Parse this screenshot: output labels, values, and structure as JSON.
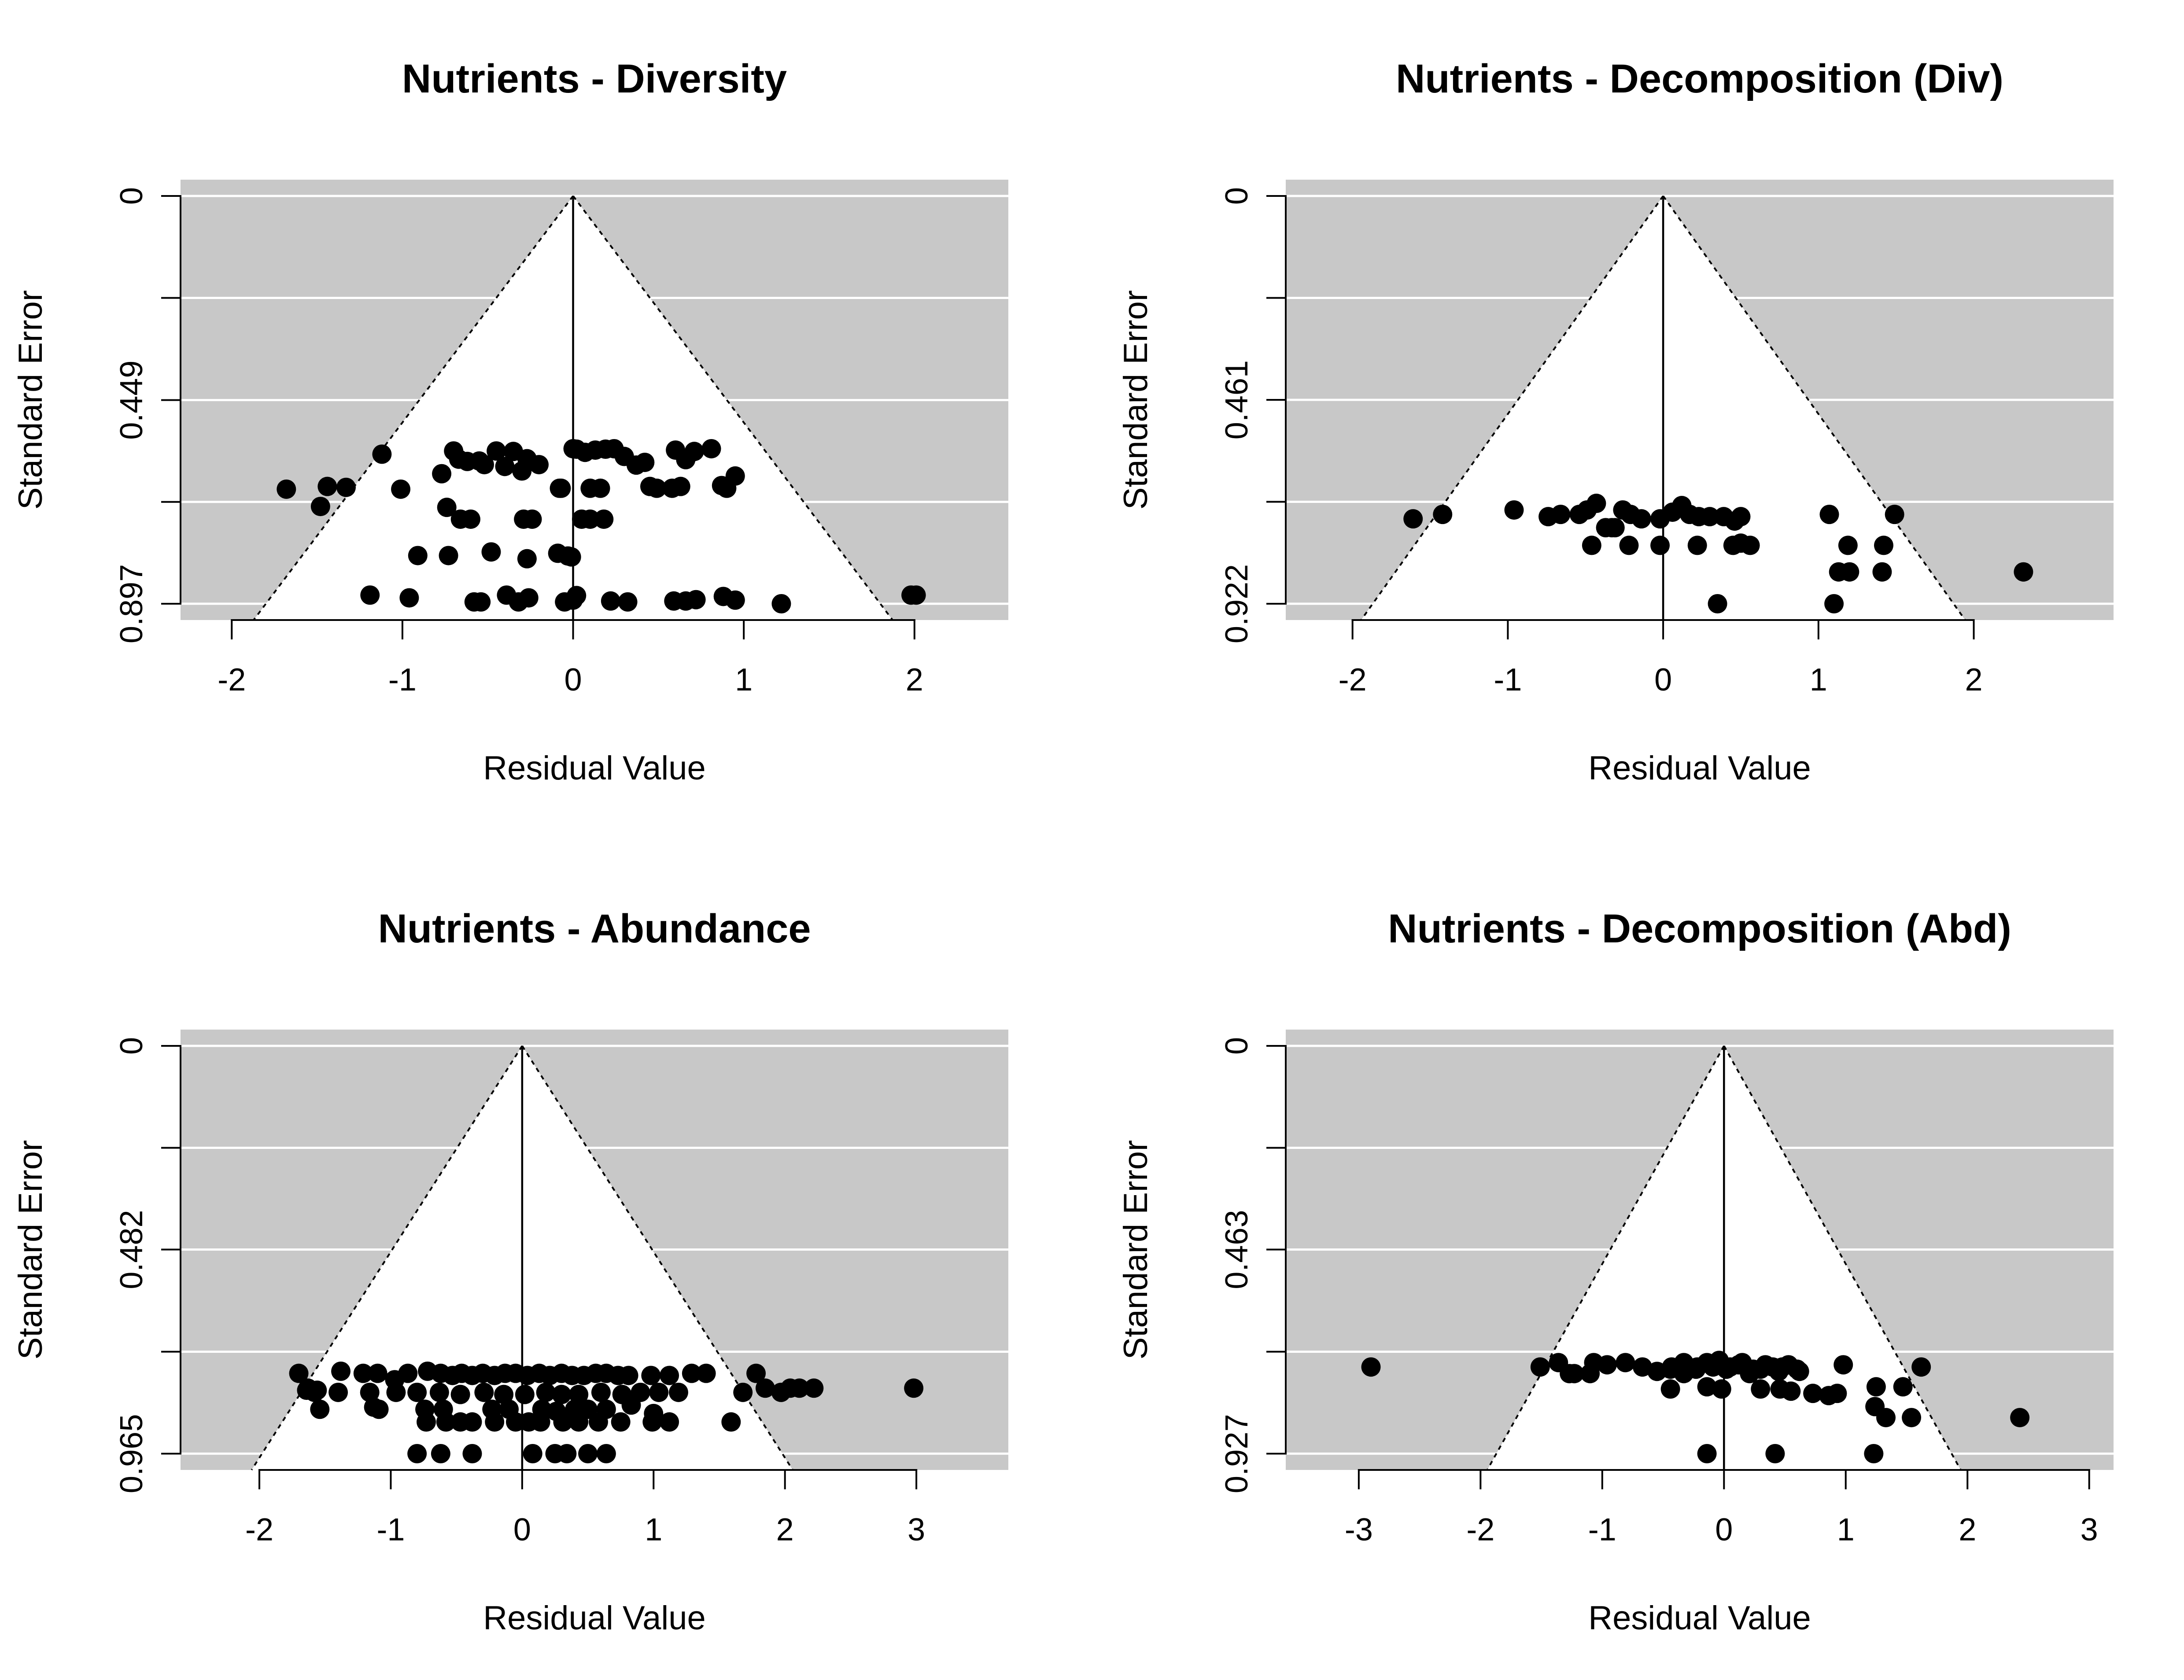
{
  "chart_data": [
    {
      "type": "scatter",
      "title": "Nutrients - Diversity",
      "xlabel": "Residual Value",
      "ylabel": "Standard Error",
      "xlim": [
        -2.3,
        2.55
      ],
      "ylim": [
        0,
        0.897
      ],
      "y_reversed": true,
      "x_ticks": [
        -2,
        -1,
        0,
        1,
        2
      ],
      "x_tick_labels": [
        "-2",
        "-1",
        "0",
        "1",
        "2"
      ],
      "y_gridlines": [
        0,
        0.2243,
        0.449,
        0.673,
        0.897
      ],
      "y_ticks": [
        0,
        0.2243,
        0.449,
        0.673,
        0.897
      ],
      "y_tick_labels": [
        "0",
        "",
        "0.449",
        "",
        "0.897"
      ],
      "funnel": {
        "center": 0,
        "max_se": 0.897,
        "bottom_half_width": 1.8
      },
      "background": "#c8c8c8",
      "x": [
        -1.68,
        -1.48,
        -1.44,
        -1.33,
        -1.12,
        -1.01,
        -0.77,
        -0.7,
        -0.67,
        -0.62,
        -0.55,
        -0.52,
        -0.45,
        -0.4,
        -0.35,
        -0.3,
        -0.27,
        -0.2,
        -0.08,
        0.0,
        0.02,
        0.07,
        0.13,
        0.19,
        0.24,
        0.3,
        0.37,
        0.42,
        0.49,
        0.6,
        0.66,
        0.71,
        0.81,
        0.87,
        0.95,
        -0.74,
        -0.66,
        -0.6,
        -0.29,
        -0.24,
        -0.07,
        0.05,
        0.1,
        0.18,
        0.45,
        0.58,
        0.63,
        0.9,
        0.1,
        0.16,
        -0.91,
        -0.73,
        -0.48,
        -0.27,
        -0.09,
        -0.03,
        -0.01,
        -1.19,
        -0.96,
        -0.58,
        -0.54,
        -0.39,
        -0.32,
        -0.26,
        -0.05,
        0.02,
        0.22,
        0.32,
        0.59,
        0.66,
        0.72,
        0.88,
        0.95,
        1.22,
        1.98,
        2.01,
        0.0
      ],
      "y": [
        0.645,
        0.683,
        0.639,
        0.641,
        0.568,
        0.645,
        0.611,
        0.561,
        0.579,
        0.584,
        0.583,
        0.591,
        0.561,
        0.595,
        0.562,
        0.605,
        0.578,
        0.591,
        0.643,
        0.556,
        0.557,
        0.564,
        0.559,
        0.557,
        0.556,
        0.573,
        0.592,
        0.586,
        0.643,
        0.559,
        0.58,
        0.562,
        0.556,
        0.637,
        0.616,
        0.685,
        0.711,
        0.711,
        0.711,
        0.711,
        0.643,
        0.711,
        0.711,
        0.711,
        0.639,
        0.643,
        0.639,
        0.643,
        0.643,
        0.643,
        0.791,
        0.791,
        0.783,
        0.798,
        0.786,
        0.792,
        0.794,
        0.878,
        0.884,
        0.893,
        0.893,
        0.878,
        0.893,
        0.884,
        0.893,
        0.879,
        0.891,
        0.893,
        0.891,
        0.891,
        0.888,
        0.881,
        0.889,
        0.897,
        0.878,
        0.878,
        0.889
      ]
    },
    {
      "type": "scatter",
      "title": "Nutrients - Decomposition (Div)",
      "xlabel": "Residual Value",
      "ylabel": "Standard Error",
      "xlim": [
        -2.43,
        2.9
      ],
      "ylim": [
        0,
        0.922
      ],
      "y_reversed": true,
      "x_ticks": [
        -2,
        -1,
        0,
        1,
        2
      ],
      "x_tick_labels": [
        "-2",
        "-1",
        "0",
        "1",
        "2"
      ],
      "y_gridlines": [
        0,
        0.2305,
        0.461,
        0.6915,
        0.922
      ],
      "y_ticks": [
        0,
        0.2305,
        0.461,
        0.6915,
        0.922
      ],
      "y_tick_labels": [
        "0",
        "",
        "0.461",
        "",
        "0.922"
      ],
      "funnel": {
        "center": 0,
        "max_se": 0.922,
        "bottom_half_width": 1.87
      },
      "background": "#c8c8c8",
      "x": [
        -1.61,
        -1.42,
        -0.96,
        -0.74,
        -0.66,
        -0.54,
        -0.49,
        -0.43,
        -0.37,
        -0.31,
        -0.26,
        -0.21,
        -0.14,
        -0.02,
        0.06,
        0.12,
        0.17,
        0.23,
        0.3,
        0.39,
        0.46,
        0.5,
        -0.46,
        -0.33,
        -0.22,
        -0.02,
        0.22,
        0.45,
        0.5,
        0.56,
        1.07,
        1.19,
        1.42,
        1.49,
        1.13,
        1.2,
        1.41,
        2.32,
        0.35,
        1.1
      ],
      "y": [
        0.73,
        0.72,
        0.71,
        0.725,
        0.72,
        0.72,
        0.71,
        0.695,
        0.75,
        0.75,
        0.71,
        0.72,
        0.73,
        0.73,
        0.715,
        0.7,
        0.72,
        0.725,
        0.725,
        0.725,
        0.735,
        0.725,
        0.79,
        0.75,
        0.79,
        0.79,
        0.79,
        0.79,
        0.785,
        0.79,
        0.72,
        0.79,
        0.79,
        0.72,
        0.85,
        0.85,
        0.85,
        0.85,
        0.922,
        0.922
      ]
    },
    {
      "type": "scatter",
      "title": "Nutrients - Abundance",
      "xlabel": "Residual Value",
      "ylabel": "Standard Error",
      "xlim": [
        -2.6,
        3.7
      ],
      "ylim": [
        0,
        0.965
      ],
      "y_reversed": true,
      "x_ticks": [
        -2,
        -1,
        0,
        1,
        2,
        3
      ],
      "x_tick_labels": [
        "-2",
        "-1",
        "0",
        "1",
        "2",
        "3"
      ],
      "y_gridlines": [
        0,
        0.2413,
        0.482,
        0.7238,
        0.965
      ],
      "y_ticks": [
        0,
        0.2413,
        0.482,
        0.7238,
        0.965
      ],
      "y_tick_labels": [
        "0",
        "",
        "0.482",
        "",
        "0.965"
      ],
      "funnel": {
        "center": 0,
        "max_se": 0.965,
        "bottom_half_width": 1.98
      },
      "background": "#c8c8c8",
      "x": [
        -1.7,
        -1.63,
        -1.56,
        -1.38,
        -1.21,
        -1.1,
        -0.97,
        -0.87,
        -0.72,
        -0.62,
        -0.53,
        -0.46,
        -0.38,
        -0.3,
        -0.21,
        -0.13,
        -0.05,
        0.04,
        0.13,
        0.21,
        0.3,
        0.38,
        0.47,
        0.56,
        0.64,
        0.73,
        0.81,
        0.98,
        1.12,
        1.29,
        1.4,
        1.78,
        1.85,
        2.04,
        2.11,
        2.22,
        2.98,
        -1.64,
        -1.58,
        -1.4,
        -1.16,
        -0.96,
        -0.8,
        -0.63,
        -0.47,
        -0.29,
        -0.14,
        0.02,
        0.18,
        0.3,
        0.43,
        0.6,
        0.76,
        0.9,
        1.04,
        1.19,
        1.68,
        1.97,
        -1.54,
        -1.13,
        -1.09,
        -0.74,
        -0.6,
        -0.23,
        -0.1,
        0.15,
        0.26,
        0.4,
        0.5,
        0.64,
        1.0,
        0.83,
        -0.73,
        -0.58,
        -0.47,
        -0.38,
        -0.21,
        -0.05,
        0.05,
        0.14,
        0.31,
        0.43,
        0.58,
        0.75,
        0.99,
        1.12,
        1.59,
        -0.8,
        -0.62,
        -0.38,
        0.08,
        0.25,
        0.34,
        0.5,
        0.64
      ],
      "y": [
        0.775,
        0.81,
        0.815,
        0.77,
        0.775,
        0.775,
        0.79,
        0.775,
        0.77,
        0.775,
        0.78,
        0.775,
        0.78,
        0.775,
        0.78,
        0.775,
        0.775,
        0.78,
        0.775,
        0.78,
        0.775,
        0.78,
        0.78,
        0.775,
        0.775,
        0.78,
        0.78,
        0.78,
        0.78,
        0.775,
        0.775,
        0.775,
        0.81,
        0.81,
        0.81,
        0.81,
        0.81,
        0.815,
        0.82,
        0.82,
        0.82,
        0.82,
        0.82,
        0.82,
        0.825,
        0.82,
        0.825,
        0.825,
        0.82,
        0.825,
        0.825,
        0.82,
        0.825,
        0.82,
        0.82,
        0.82,
        0.82,
        0.82,
        0.86,
        0.855,
        0.86,
        0.86,
        0.86,
        0.86,
        0.86,
        0.86,
        0.865,
        0.86,
        0.86,
        0.86,
        0.87,
        0.85,
        0.89,
        0.89,
        0.89,
        0.89,
        0.89,
        0.89,
        0.89,
        0.89,
        0.89,
        0.89,
        0.89,
        0.89,
        0.89,
        0.89,
        0.89,
        0.965,
        0.965,
        0.965,
        0.965,
        0.965,
        0.965,
        0.965,
        0.965
      ]
    },
    {
      "type": "scatter",
      "title": "Nutrients - Decomposition (Abd)",
      "xlabel": "Residual Value",
      "ylabel": "Standard Error",
      "xlim": [
        -3.6,
        3.2
      ],
      "ylim": [
        0,
        0.927
      ],
      "y_reversed": true,
      "x_ticks": [
        -3,
        -2,
        -1,
        0,
        1,
        2,
        3
      ],
      "x_tick_labels": [
        "-3",
        "-2",
        "-1",
        "0",
        "1",
        "2",
        "3"
      ],
      "y_gridlines": [
        0,
        0.2318,
        0.463,
        0.6953,
        0.927
      ],
      "y_ticks": [
        0,
        0.2318,
        0.463,
        0.6953,
        0.927
      ],
      "y_tick_labels": [
        "0",
        "",
        "0.463",
        "",
        "0.927"
      ],
      "funnel": {
        "center": 0,
        "max_se": 0.927,
        "bottom_half_width": 1.87
      },
      "background": "#c8c8c8",
      "x": [
        -2.9,
        -1.51,
        -1.36,
        -1.23,
        -1.1,
        -0.96,
        -0.81,
        -0.67,
        -0.55,
        -0.43,
        -0.33,
        -0.23,
        -0.14,
        -0.04,
        0.05,
        0.15,
        0.24,
        0.34,
        0.45,
        0.53,
        0.62,
        0.98,
        1.62,
        -1.27,
        -1.07,
        -0.44,
        -0.33,
        -0.22,
        -0.09,
        0.02,
        0.12,
        0.21,
        0.3,
        0.4,
        0.48,
        0.6,
        -0.44,
        -0.14,
        -0.02,
        0.3,
        0.46,
        0.55,
        0.73,
        0.86,
        0.93,
        1.25,
        1.47,
        1.24,
        1.33,
        1.54,
        2.43,
        -0.14,
        0.42,
        1.23
      ],
      "y": [
        0.73,
        0.73,
        0.72,
        0.745,
        0.745,
        0.725,
        0.72,
        0.73,
        0.74,
        0.73,
        0.72,
        0.735,
        0.72,
        0.715,
        0.73,
        0.72,
        0.735,
        0.725,
        0.74,
        0.725,
        0.74,
        0.725,
        0.73,
        0.745,
        0.72,
        0.735,
        0.745,
        0.73,
        0.73,
        0.735,
        0.725,
        0.745,
        0.735,
        0.73,
        0.73,
        0.735,
        0.78,
        0.775,
        0.78,
        0.78,
        0.78,
        0.785,
        0.79,
        0.795,
        0.79,
        0.775,
        0.775,
        0.82,
        0.845,
        0.845,
        0.845,
        0.927,
        0.927,
        0.927
      ]
    }
  ]
}
